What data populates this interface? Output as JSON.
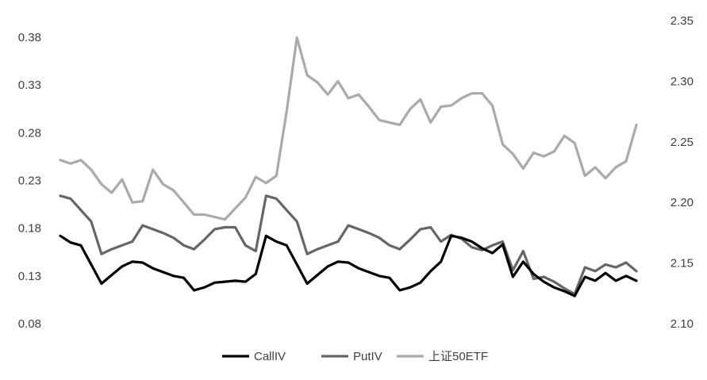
{
  "chart_data": {
    "type": "line",
    "left_axis": {
      "ylim": [
        0.08,
        0.38
      ],
      "ticks": [
        "0.08",
        "0.13",
        "0.18",
        "0.23",
        "0.28",
        "0.33",
        "0.38"
      ]
    },
    "right_axis": {
      "ylim": [
        2.1,
        2.35
      ],
      "ticks": [
        "2.10",
        "2.15",
        "2.20",
        "2.25",
        "2.30",
        "2.35"
      ]
    },
    "grid": false,
    "legend_position": "bottom",
    "series": [
      {
        "name": "CallIV",
        "axis": "left",
        "color": "#000000",
        "values": [
          0.172,
          0.165,
          0.162,
          0.142,
          0.122,
          0.131,
          0.14,
          0.145,
          0.144,
          0.138,
          0.134,
          0.13,
          0.128,
          0.115,
          0.118,
          0.123,
          0.124,
          0.125,
          0.124,
          0.132,
          0.172,
          0.166,
          0.162,
          0.142,
          0.122,
          0.131,
          0.14,
          0.145,
          0.144,
          0.138,
          0.134,
          0.13,
          0.128,
          0.115,
          0.118,
          0.123,
          0.135,
          0.145,
          0.172,
          0.17,
          0.166,
          0.159,
          0.154,
          0.163,
          0.129,
          0.145,
          0.132,
          0.124,
          0.118,
          0.114,
          0.109,
          0.129,
          0.125,
          0.133,
          0.125,
          0.13,
          0.125
        ]
      },
      {
        "name": "PutIV",
        "axis": "left",
        "color": "#666666",
        "values": [
          0.214,
          0.211,
          0.199,
          0.187,
          0.153,
          0.158,
          0.162,
          0.166,
          0.183,
          0.179,
          0.175,
          0.17,
          0.162,
          0.158,
          0.168,
          0.179,
          0.181,
          0.181,
          0.162,
          0.156,
          0.214,
          0.211,
          0.199,
          0.187,
          0.153,
          0.158,
          0.162,
          0.166,
          0.183,
          0.179,
          0.175,
          0.17,
          0.162,
          0.158,
          0.168,
          0.179,
          0.181,
          0.166,
          0.173,
          0.169,
          0.16,
          0.157,
          0.162,
          0.166,
          0.136,
          0.156,
          0.127,
          0.129,
          0.124,
          0.117,
          0.111,
          0.139,
          0.135,
          0.142,
          0.139,
          0.144,
          0.135
        ]
      },
      {
        "name": "上证50ETF",
        "axis": "right",
        "color": "#aaaaaa",
        "values": [
          2.235,
          2.232,
          2.235,
          2.227,
          2.215,
          2.208,
          2.219,
          2.2,
          2.201,
          2.227,
          2.215,
          2.21,
          2.2,
          2.19,
          2.19,
          2.188,
          2.186,
          2.195,
          2.204,
          2.221,
          2.216,
          2.222,
          2.275,
          2.336,
          2.305,
          2.299,
          2.289,
          2.3,
          2.286,
          2.289,
          2.279,
          2.268,
          2.266,
          2.264,
          2.277,
          2.285,
          2.266,
          2.279,
          2.28,
          2.286,
          2.29,
          2.29,
          2.28,
          2.248,
          2.24,
          2.228,
          2.241,
          2.238,
          2.242,
          2.255,
          2.249,
          2.222,
          2.229,
          2.22,
          2.229,
          2.234,
          2.264
        ]
      }
    ]
  }
}
